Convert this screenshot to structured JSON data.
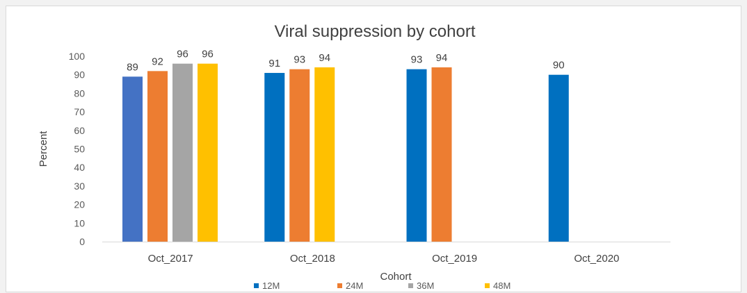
{
  "chart_data": {
    "type": "bar",
    "title": "Viral suppression  by cohort",
    "xlabel": "Cohort",
    "ylabel": "Percent",
    "ylim": [
      0,
      100
    ],
    "ytick_step": 10,
    "grid": false,
    "legend_position": "bottom",
    "categories": [
      "Oct_2017",
      "Oct_2018",
      "Oct_2019",
      "Oct_2020"
    ],
    "series": [
      {
        "name": "12M",
        "color": "#0070c0",
        "values": [
          89,
          91,
          93,
          90
        ]
      },
      {
        "name": "24M",
        "color": "#ed7d31",
        "values": [
          92,
          93,
          94,
          null
        ]
      },
      {
        "name": "36M",
        "color": "#a5a5a5",
        "values": [
          96,
          null,
          null,
          null
        ]
      },
      {
        "name": "48M",
        "color": "#ffc000",
        "values": [
          96,
          94,
          null,
          null
        ]
      }
    ],
    "point_colors": {
      "0.0": "#4472c4"
    }
  }
}
